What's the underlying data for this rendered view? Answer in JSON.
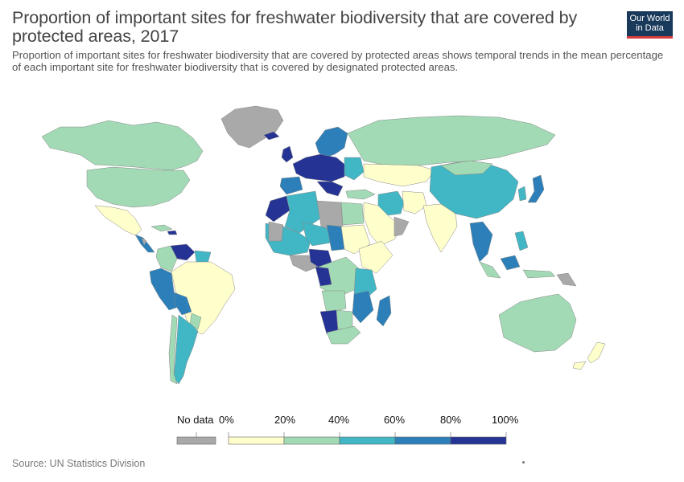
{
  "title": "Proportion of important sites for freshwater biodiversity that are covered by protected areas, 2017",
  "subtitle": "Proportion of important sites for freshwater biodiversity that are covered by protected areas shows temporal trends in the mean percentage of each important site for freshwater biodiversity that is covered by designated protected areas.",
  "logo": {
    "line1": "Our World",
    "line2": "in Data"
  },
  "legend": {
    "no_data_label": "No data",
    "no_data_color": "#a9a9a9",
    "tick_labels": [
      "0%",
      "20%",
      "40%",
      "60%",
      "80%",
      "100%"
    ],
    "bins": [
      {
        "range": "0-20%",
        "color": "#ffffcc"
      },
      {
        "range": "20-40%",
        "color": "#a1dab4"
      },
      {
        "range": "40-60%",
        "color": "#41b6c4"
      },
      {
        "range": "60-80%",
        "color": "#2c7fb8"
      },
      {
        "range": "80-100%",
        "color": "#253494"
      }
    ]
  },
  "source": "Source: UN Statistics Division",
  "colors": {
    "bin_0_20": "#ffffcc",
    "bin_20_40": "#a1dab4",
    "bin_40_60": "#41b6c4",
    "bin_60_80": "#2c7fb8",
    "bin_80_100": "#253494",
    "no_data": "#a9a9a9",
    "border": "#888888",
    "logo_bg": "#1a3a5c",
    "logo_accent": "#d73b3e"
  }
}
